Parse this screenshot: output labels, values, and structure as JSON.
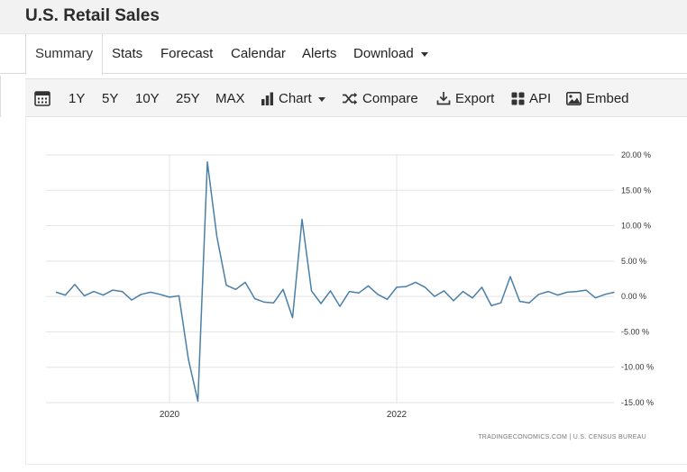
{
  "page": {
    "title": "U.S. Retail Sales"
  },
  "tabs": [
    {
      "label": "Summary",
      "active": true
    },
    {
      "label": "Stats"
    },
    {
      "label": "Forecast"
    },
    {
      "label": "Calendar"
    },
    {
      "label": "Alerts"
    },
    {
      "label": "Download",
      "dropdown": true
    }
  ],
  "toolbar": {
    "calendar_icon": "calendar-icon",
    "ranges": [
      "1Y",
      "5Y",
      "10Y",
      "25Y",
      "MAX"
    ],
    "chart_label": "Chart",
    "compare_label": "Compare",
    "export_label": "Export",
    "api_label": "API",
    "embed_label": "Embed"
  },
  "chart_data": {
    "type": "line",
    "title": "",
    "xlabel": "",
    "ylabel": "",
    "y_unit": "%",
    "ylim": [
      -15,
      20
    ],
    "y_ticks": [
      "20.00 %",
      "15.00 %",
      "10.00 %",
      "5.00 %",
      "0.00 %",
      "-5.00 %",
      "-10.00 %",
      "-15.00 %"
    ],
    "x_ticks": [
      "2020",
      "2022"
    ],
    "grid": "horizontal",
    "colors": {
      "line": "#4a7fa8",
      "grid": "#e3e3e3"
    },
    "credit": "TRADINGECONOMICS.COM  |  U.S. CENSUS BUREAU",
    "series": [
      {
        "x": [
          "2019-01",
          "2019-02",
          "2019-03",
          "2019-04",
          "2019-05",
          "2019-06",
          "2019-07",
          "2019-08",
          "2019-09",
          "2019-10",
          "2019-11",
          "2019-12",
          "2020-01",
          "2020-02",
          "2020-03",
          "2020-04",
          "2020-05",
          "2020-06",
          "2020-07",
          "2020-08",
          "2020-09",
          "2020-10",
          "2020-11",
          "2020-12",
          "2021-01",
          "2021-02",
          "2021-03",
          "2021-04",
          "2021-05",
          "2021-06",
          "2021-07",
          "2021-08",
          "2021-09",
          "2021-10",
          "2021-11",
          "2021-12",
          "2022-01",
          "2022-02",
          "2022-03",
          "2022-04",
          "2022-05",
          "2022-06",
          "2022-07",
          "2022-08",
          "2022-09",
          "2022-10",
          "2022-11",
          "2022-12",
          "2023-01",
          "2023-02",
          "2023-03",
          "2023-04",
          "2023-05",
          "2023-06",
          "2023-07",
          "2023-08",
          "2023-09",
          "2023-10",
          "2023-11",
          "2023-12"
        ],
        "values": [
          0.6,
          0.2,
          1.7,
          0.1,
          0.7,
          0.2,
          0.9,
          0.7,
          -0.5,
          0.3,
          0.6,
          0.3,
          -0.1,
          0.1,
          -8.9,
          -14.8,
          19.0,
          8.5,
          1.6,
          1.0,
          2.0,
          -0.3,
          -0.8,
          -0.9,
          1.0,
          -3.0,
          10.9,
          0.8,
          -1.0,
          0.8,
          -1.4,
          0.7,
          0.5,
          1.5,
          0.3,
          -0.4,
          1.3,
          1.4,
          2.0,
          1.3,
          0.0,
          0.8,
          -0.6,
          0.7,
          -0.2,
          1.3,
          -1.3,
          -0.9,
          2.8,
          -0.7,
          -0.9,
          0.3,
          0.7,
          0.2,
          0.6,
          0.7,
          0.9,
          -0.2,
          0.3,
          0.6
        ]
      }
    ]
  }
}
